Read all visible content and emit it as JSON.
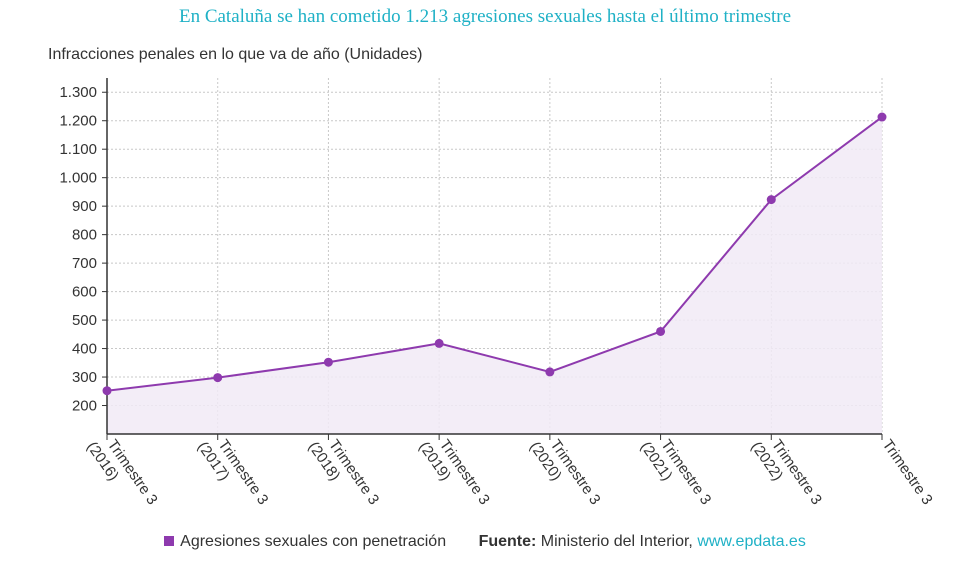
{
  "chart_data": {
    "type": "area",
    "title": "En Cataluña se han cometido 1.213 agresiones sexuales hasta el último trimestre",
    "ylabel": "Infracciones penales en lo que va de año (Unidades)",
    "xlabel": "",
    "ylim": [
      100,
      1350
    ],
    "yticks": [
      200,
      300,
      400,
      500,
      600,
      700,
      800,
      900,
      1000,
      1100,
      1200,
      1300
    ],
    "ytick_labels": [
      "200",
      "300",
      "400",
      "500",
      "600",
      "700",
      "800",
      "900",
      "1.000",
      "1.100",
      "1.200",
      "1.300"
    ],
    "categories": [
      {
        "line1": "Trimestre 3",
        "line2": "(2016)"
      },
      {
        "line1": "Trimestre 3",
        "line2": "(2017)"
      },
      {
        "line1": "Trimestre 3",
        "line2": "(2018)"
      },
      {
        "line1": "Trimestre 3",
        "line2": "(2019)"
      },
      {
        "line1": "Trimestre 3",
        "line2": "(2020)"
      },
      {
        "line1": "Trimestre 3",
        "line2": "(2021)"
      },
      {
        "line1": "Trimestre 3",
        "line2": "(2022)"
      },
      {
        "line1": "Trimestre 3",
        "line2": ""
      }
    ],
    "series": [
      {
        "name": "Agresiones sexuales con penetración",
        "values": [
          252,
          298,
          352,
          418,
          318,
          460,
          923,
          1213
        ],
        "color": "#8e3aae"
      }
    ],
    "grid": true,
    "legend": "bottom"
  },
  "legend": {
    "series_label": "Agresiones sexuales con penetración",
    "source_label": "Fuente:",
    "source_text": "Ministerio del Interior,",
    "source_link": "www.epdata.es"
  },
  "colors": {
    "line": "#8e3aae",
    "fill": "#f1eaf6",
    "accent": "#1fb1c6",
    "grid": "#c8c8c8",
    "axis": "#333333"
  }
}
